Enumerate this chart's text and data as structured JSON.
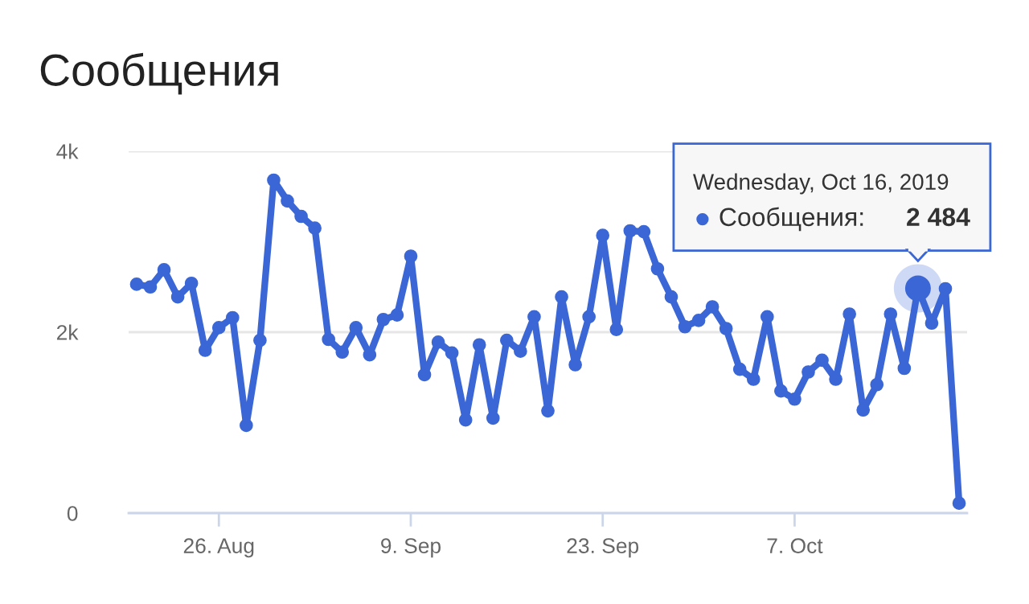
{
  "chart_data": {
    "type": "line",
    "title": "Сообщения",
    "x": [
      "2019-08-20",
      "2019-08-21",
      "2019-08-22",
      "2019-08-23",
      "2019-08-24",
      "2019-08-25",
      "2019-08-26",
      "2019-08-27",
      "2019-08-28",
      "2019-08-29",
      "2019-08-30",
      "2019-08-31",
      "2019-09-01",
      "2019-09-02",
      "2019-09-03",
      "2019-09-04",
      "2019-09-05",
      "2019-09-06",
      "2019-09-07",
      "2019-09-08",
      "2019-09-09",
      "2019-09-10",
      "2019-09-11",
      "2019-09-12",
      "2019-09-13",
      "2019-09-14",
      "2019-09-15",
      "2019-09-16",
      "2019-09-17",
      "2019-09-18",
      "2019-09-19",
      "2019-09-20",
      "2019-09-21",
      "2019-09-22",
      "2019-09-23",
      "2019-09-24",
      "2019-09-25",
      "2019-09-26",
      "2019-09-27",
      "2019-09-28",
      "2019-09-29",
      "2019-09-30",
      "2019-10-01",
      "2019-10-02",
      "2019-10-03",
      "2019-10-04",
      "2019-10-05",
      "2019-10-06",
      "2019-10-07",
      "2019-10-08",
      "2019-10-09",
      "2019-10-10",
      "2019-10-11",
      "2019-10-12",
      "2019-10-13",
      "2019-10-14",
      "2019-10-15",
      "2019-10-16",
      "2019-10-17",
      "2019-10-18",
      "2019-10-19"
    ],
    "series": [
      {
        "color": "#3b67d6",
        "values": [
          2530,
          2500,
          2690,
          2390,
          2540,
          1800,
          2050,
          2160,
          970,
          1910,
          3680,
          3450,
          3280,
          3150,
          1920,
          1780,
          2050,
          1750,
          2140,
          2190,
          2840,
          1530,
          1890,
          1770,
          1030,
          1860,
          1050,
          1910,
          1790,
          2170,
          1130,
          2390,
          1640,
          2170,
          3070,
          2030,
          3120,
          3110,
          2700,
          2390,
          2060,
          2130,
          2280,
          2040,
          1590,
          1480,
          2170,
          1350,
          1260,
          1560,
          1690,
          1480,
          2200,
          1140,
          1420,
          2200,
          1600,
          2484,
          2100,
          2480,
          110
        ],
        "value_labels": [
          null,
          null,
          null,
          null,
          null,
          null,
          null,
          null,
          null,
          null,
          null,
          null,
          null,
          null,
          null,
          null,
          null,
          null,
          null,
          null,
          null,
          null,
          null,
          null,
          null,
          null,
          null,
          null,
          null,
          null,
          null,
          null,
          null,
          null,
          null,
          null,
          null,
          null,
          null,
          null,
          null,
          null,
          null,
          null,
          null,
          null,
          null,
          null,
          null,
          null,
          null,
          null,
          null,
          null,
          null,
          null,
          null,
          "2 484",
          null,
          null,
          null
        ]
      }
    ],
    "xlim": [
      "2019-08-19T10:00",
      "2019-10-19T14:00"
    ],
    "xticks": [
      {
        "value": "2019-08-26",
        "label": "26. Aug"
      },
      {
        "value": "2019-09-09",
        "label": "9. Sep"
      },
      {
        "value": "2019-09-23",
        "label": "23. Sep"
      },
      {
        "value": "2019-10-07",
        "label": "7. Oct"
      }
    ],
    "ylim": [
      0,
      4000
    ],
    "yticks": [
      0,
      {
        "value": 2000,
        "label": "2k"
      },
      {
        "value": 4000,
        "label": "4k"
      }
    ],
    "annotations": [
      "Wednesday, Oct 16, 2019",
      "Сообщения:"
    ],
    "grid": "y",
    "marker": "circle",
    "line_style": "solid",
    "legend": false
  }
}
